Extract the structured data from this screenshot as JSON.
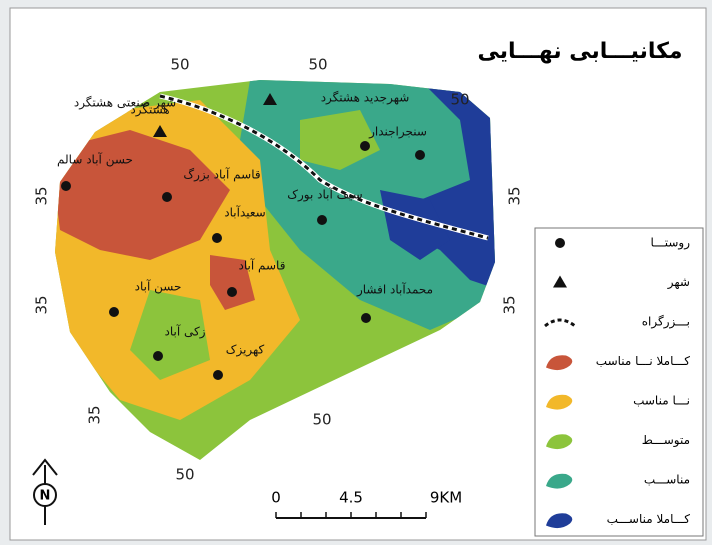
{
  "title": "مکانیـــابی نهـــایی",
  "places": [
    {
      "label": "شهرجدید هشتگرد"
    },
    {
      "label": "شهر صنعتی هشتگرد"
    },
    {
      "label": "هشتگرد"
    },
    {
      "label": "سنجراجندار"
    },
    {
      "label": "حسن آباد سالم"
    },
    {
      "label": "قاسم آباد بزرگ"
    },
    {
      "label": "سعیدآباد"
    },
    {
      "label": "سیف آباد بورک"
    },
    {
      "label": "قاسم آباد"
    },
    {
      "label": "حسن آباد"
    },
    {
      "label": "محمدآباد افشار"
    },
    {
      "label": "زکی آباد"
    },
    {
      "label": "کهریزک"
    }
  ],
  "grid_labels": [
    "50",
    "50",
    "50",
    "35",
    "35",
    "35",
    "35",
    "35",
    "50",
    "50"
  ],
  "legend": [
    {
      "label": "روستـــا"
    },
    {
      "label": "شهر"
    },
    {
      "label": "بـــزرگراه"
    },
    {
      "label": "کـــاملا نـــا مناسب"
    },
    {
      "label": "نـــا مناسب"
    },
    {
      "label": "متوســـط"
    },
    {
      "label": "مناســـب"
    },
    {
      "label": "کـــاملا مناســـب"
    }
  ],
  "scale": [
    "0",
    "4.5",
    "9KM"
  ],
  "north": "N"
}
